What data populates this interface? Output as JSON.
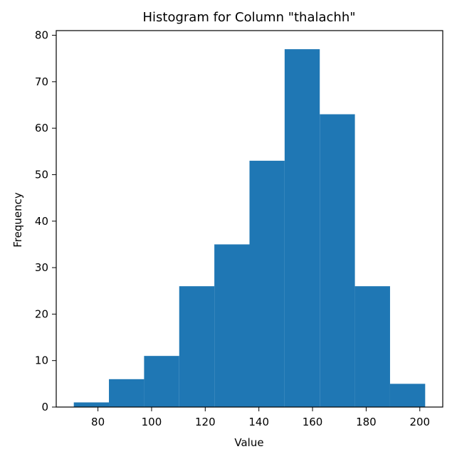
{
  "chart_data": {
    "type": "bar",
    "title": "Histogram for Column \"thalachh\"",
    "xlabel": "Value",
    "ylabel": "Frequency",
    "bar_color": "#1f77b4",
    "bins": [
      {
        "start": 71.0,
        "end": 84.1,
        "count": 1
      },
      {
        "start": 84.1,
        "end": 97.2,
        "count": 6
      },
      {
        "start": 97.2,
        "end": 110.3,
        "count": 11
      },
      {
        "start": 110.3,
        "end": 123.4,
        "count": 26
      },
      {
        "start": 123.4,
        "end": 136.5,
        "count": 35
      },
      {
        "start": 136.5,
        "end": 149.6,
        "count": 53
      },
      {
        "start": 149.6,
        "end": 162.7,
        "count": 77
      },
      {
        "start": 162.7,
        "end": 175.8,
        "count": 63
      },
      {
        "start": 175.8,
        "end": 188.9,
        "count": 26
      },
      {
        "start": 188.9,
        "end": 202.0,
        "count": 5
      }
    ],
    "xlim": [
      64.45,
      208.55
    ],
    "ylim": [
      0,
      81
    ],
    "x_ticks": [
      80,
      100,
      120,
      140,
      160,
      180,
      200
    ],
    "y_ticks": [
      0,
      10,
      20,
      30,
      40,
      50,
      60,
      70,
      80
    ],
    "grid": false
  }
}
